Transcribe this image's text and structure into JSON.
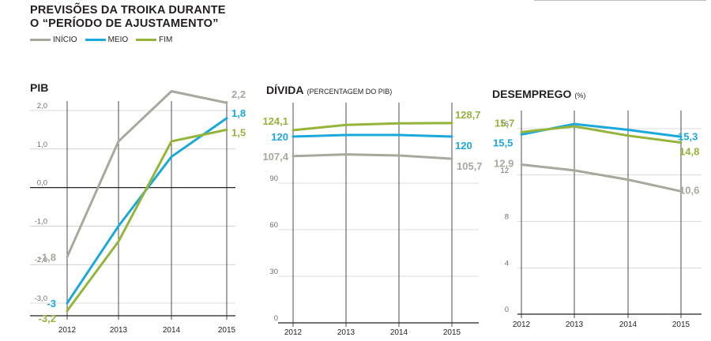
{
  "header": {
    "title_line1": "PREVISÕES DA TROIKA DURANTE",
    "title_line2": "O “PERÍODO DE AJUSTAMENTO”"
  },
  "legend": [
    {
      "label": "INÍCIO",
      "color": "#a8a89c"
    },
    {
      "label": "MEIO",
      "color": "#1ba9db"
    },
    {
      "label": "FIM",
      "color": "#95b43a"
    }
  ],
  "colors": {
    "inicio": "#a8a89c",
    "meio": "#1ba9db",
    "fim": "#95b43a",
    "axis": "#231f20",
    "grid": "#b8b8b8"
  },
  "chart_data": [
    {
      "type": "line",
      "title": "PIB",
      "subtitle": "",
      "categories": [
        "2012",
        "2013",
        "2014",
        "2015"
      ],
      "ylim": [
        -3.6,
        2.3
      ],
      "yticks": [
        2.0,
        1.0,
        0.0,
        -1.0,
        -2.0,
        -3.0
      ],
      "ytick_labels": [
        "2,0",
        "1,0",
        "0,0",
        "-1,0",
        "-2,0",
        "-3,0"
      ],
      "series": [
        {
          "name": "INÍCIO",
          "key": "inicio",
          "values": [
            -1.8,
            1.2,
            2.5,
            2.2
          ],
          "labels": {
            "0": "-1,8",
            "3": "2,2"
          }
        },
        {
          "name": "MEIO",
          "key": "meio",
          "values": [
            -3.0,
            -1.0,
            0.8,
            1.8
          ],
          "labels": {
            "0": "-3",
            "3": "1,8"
          }
        },
        {
          "name": "FIM",
          "key": "fim",
          "values": [
            -3.2,
            -1.4,
            1.2,
            1.5
          ],
          "labels": {
            "0": "-3,2",
            "3": "1,5"
          }
        }
      ]
    },
    {
      "type": "line",
      "title": "DÍVIDA",
      "subtitle": "(PERCENTAGEM DO PIB)",
      "categories": [
        "2012",
        "2013",
        "2014",
        "2015"
      ],
      "ylim": [
        0,
        140
      ],
      "yticks": [
        0,
        30,
        60,
        90
      ],
      "ytick_labels": [
        "0",
        "30",
        "60",
        "90"
      ],
      "series": [
        {
          "name": "INÍCIO",
          "key": "inicio",
          "values": [
            107.4,
            108.5,
            107.8,
            105.7
          ],
          "labels": {
            "0": "107,4",
            "3": "105,7"
          }
        },
        {
          "name": "MEIO",
          "key": "meio",
          "values": [
            120,
            121,
            121,
            120
          ],
          "labels": {
            "0": "120",
            "3": "120"
          }
        },
        {
          "name": "FIM",
          "key": "fim",
          "values": [
            124.1,
            127.5,
            128.5,
            128.7
          ],
          "labels": {
            "0": "124,1",
            "3": "128,7"
          }
        }
      ]
    },
    {
      "type": "line",
      "title": "DESEMPREGO",
      "subtitle": "(%)",
      "categories": [
        "2012",
        "2013",
        "2014",
        "2015"
      ],
      "ylim": [
        0,
        17
      ],
      "yticks": [
        16,
        12,
        8,
        4,
        0
      ],
      "ytick_labels": [
        "16",
        "12",
        "8",
        "4",
        "0"
      ],
      "series": [
        {
          "name": "INÍCIO",
          "key": "inicio",
          "values": [
            12.9,
            12.4,
            11.6,
            10.6
          ],
          "labels": {
            "0": "12,9",
            "3": "10,6"
          }
        },
        {
          "name": "MEIO",
          "key": "meio",
          "values": [
            15.5,
            16.4,
            15.9,
            15.3
          ],
          "labels": {
            "0": "15,5",
            "3": "15,3"
          }
        },
        {
          "name": "FIM",
          "key": "fim",
          "values": [
            15.7,
            16.2,
            15.4,
            14.8
          ],
          "labels": {
            "0": "15,7",
            "3": "14,8"
          }
        }
      ]
    }
  ]
}
